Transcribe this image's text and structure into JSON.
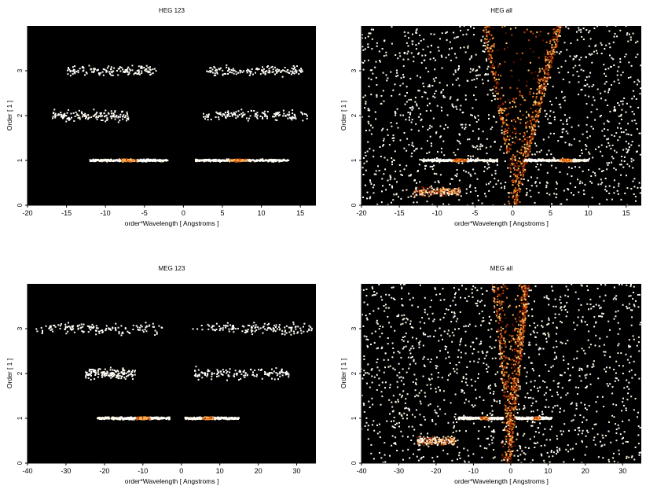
{
  "chart_data": [
    {
      "type": "heatmap",
      "title": "HEG 123",
      "xlabel": "order*Wavelength [ Angstroms ]",
      "ylabel": "Order [ 1 ]",
      "xlim": [
        -20,
        17
      ],
      "ylim": [
        0,
        4
      ],
      "xticks": [
        -20,
        -15,
        -10,
        -5,
        0,
        5,
        10,
        15
      ],
      "yticks": [
        0,
        1,
        2,
        3
      ],
      "background": "#000000",
      "colormap": [
        "#5a0f00",
        "#b53a08",
        "#f07a18",
        "#ffc870",
        "#fff6de",
        "#ffffff"
      ],
      "bands": [
        {
          "order": 1,
          "x_ranges": [
            [
              -12,
              -2
            ],
            [
              1.5,
              13.5
            ]
          ],
          "peaks": [
            -7,
            7
          ],
          "intensity": "high"
        },
        {
          "order": 2,
          "x_ranges": [
            [
              -17,
              -7
            ],
            [
              2.5,
              16
            ]
          ],
          "intensity": "sparse"
        },
        {
          "order": 3,
          "x_ranges": [
            [
              -15,
              -3.5
            ],
            [
              3,
              15.5
            ]
          ],
          "intensity": "sparse"
        }
      ]
    },
    {
      "type": "heatmap",
      "title": "HEG all",
      "xlabel": "order*Wavelength [ Angstroms ]",
      "ylabel": "Order [ 1 ]",
      "xlim": [
        -20,
        17
      ],
      "ylim": [
        0,
        4
      ],
      "xticks": [
        -20,
        -15,
        -10,
        -5,
        0,
        5,
        10,
        15
      ],
      "yticks": [
        0,
        1,
        2,
        3
      ],
      "background": "#000000",
      "colormap": [
        "#5a0f00",
        "#b53a08",
        "#f07a18",
        "#ffc870",
        "#fff6de",
        "#ffffff"
      ],
      "bands": [
        {
          "order": 1,
          "x_ranges": [
            [
              -12,
              -2
            ],
            [
              1.5,
              10
            ]
          ],
          "peaks": [
            -7,
            7
          ],
          "intensity": "high"
        },
        {
          "order": 0.3,
          "x_ranges": [
            [
              -13,
              -7
            ]
          ],
          "intensity": "medium"
        }
      ],
      "wedge": {
        "x_at_zero": 0.5,
        "x_left_at_top": -4,
        "x_right_at_top": 6.5,
        "dense_edge": "right"
      }
    },
    {
      "type": "heatmap",
      "title": "MEG 123",
      "xlabel": "order*Wavelength [ Angstroms ]",
      "ylabel": "Order [ 1 ]",
      "xlim": [
        -40,
        35
      ],
      "ylim": [
        0,
        4
      ],
      "xticks": [
        -40,
        -30,
        -20,
        -10,
        0,
        10,
        20,
        30
      ],
      "yticks": [
        0,
        1,
        2,
        3
      ],
      "background": "#000000",
      "colormap": [
        "#5a0f00",
        "#b53a08",
        "#f07a18",
        "#ffc870",
        "#fff6de",
        "#ffffff"
      ],
      "bands": [
        {
          "order": 1,
          "x_ranges": [
            [
              -22,
              -3
            ],
            [
              1,
              15
            ]
          ],
          "peaks": [
            -10,
            7
          ],
          "intensity": "high"
        },
        {
          "order": 2,
          "x_ranges": [
            [
              -25,
              -12
            ],
            [
              3,
              28
            ]
          ],
          "intensity": "sparse"
        },
        {
          "order": 3,
          "x_ranges": [
            [
              -38,
              -5
            ],
            [
              3,
              34
            ]
          ],
          "intensity": "sparse"
        }
      ]
    },
    {
      "type": "heatmap",
      "title": "MEG all",
      "xlabel": "order*Wavelength [ Angstroms ]",
      "ylabel": "Order [ 1 ]",
      "xlim": [
        -40,
        35
      ],
      "ylim": [
        0,
        4
      ],
      "xticks": [
        -40,
        -30,
        -20,
        -10,
        0,
        10,
        20,
        30
      ],
      "yticks": [
        0,
        1,
        2,
        3
      ],
      "background": "#000000",
      "colormap": [
        "#5a0f00",
        "#b53a08",
        "#f07a18",
        "#ffc870",
        "#fff6de",
        "#ffffff"
      ],
      "bands": [
        {
          "order": 1,
          "x_ranges": [
            [
              -14,
              -2
            ],
            [
              1.5,
              11
            ]
          ],
          "peaks": [
            -7,
            7
          ],
          "intensity": "high"
        },
        {
          "order": 0.5,
          "x_ranges": [
            [
              -25,
              -15
            ]
          ],
          "intensity": "medium"
        }
      ],
      "wedge": {
        "x_at_zero": 0,
        "x_left_at_top": -5,
        "x_right_at_top": 5,
        "dense_edge": "right"
      }
    }
  ]
}
